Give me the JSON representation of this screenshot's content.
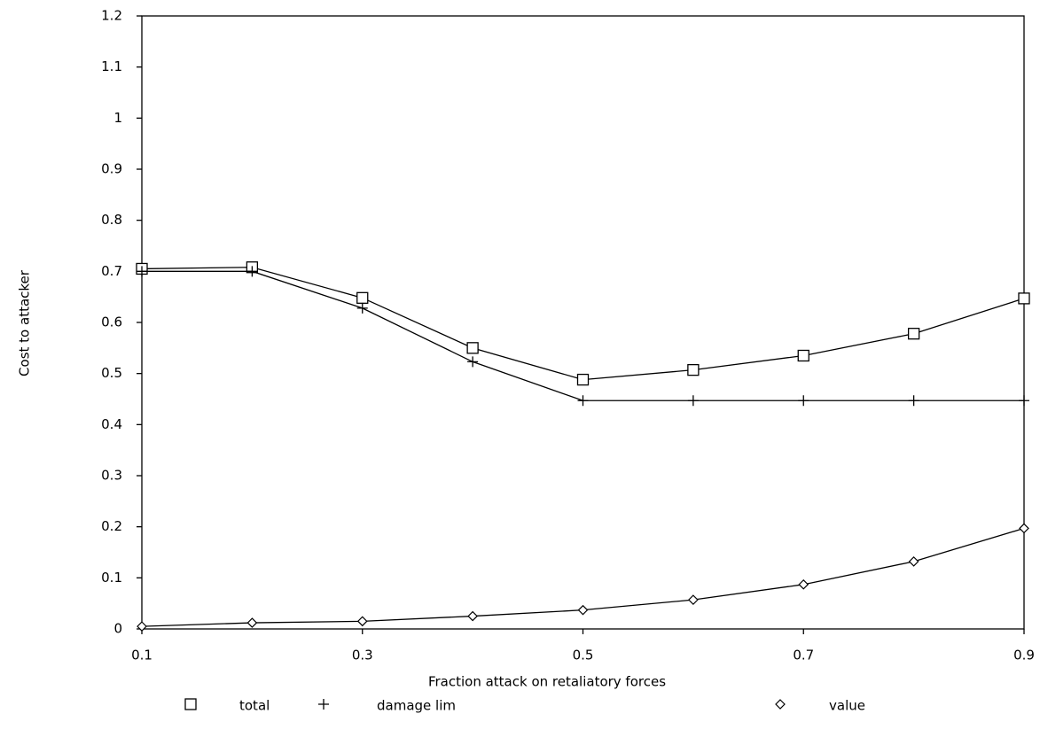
{
  "chart_data": {
    "type": "line",
    "x_label": "Fraction attack on retaliatory forces",
    "y_label": "Cost to attacker",
    "x": [
      0.1,
      0.2,
      0.3,
      0.4,
      0.5,
      0.6,
      0.7,
      0.8,
      0.9
    ],
    "series": [
      {
        "name": "total",
        "color": "#000000",
        "marker": "square",
        "values": [
          0.705,
          0.708,
          0.648,
          0.55,
          0.488,
          0.507,
          0.535,
          0.578,
          0.647
        ]
      },
      {
        "name": "damage lim",
        "color": "#000000",
        "marker": "plus",
        "values": [
          0.7,
          0.7,
          0.628,
          0.523,
          0.447,
          0.447,
          0.447,
          0.447,
          0.447
        ]
      },
      {
        "name": "value",
        "color": "#000000",
        "marker": "diamond",
        "values": [
          0.005,
          0.012,
          0.015,
          0.025,
          0.037,
          0.057,
          0.087,
          0.132,
          0.197
        ]
      }
    ],
    "xlim": [
      0.1,
      0.9
    ],
    "xticks": [
      0.1,
      0.3,
      0.5,
      0.7,
      0.9
    ],
    "ylim": [
      0,
      1.2
    ],
    "yticks": [
      0,
      0.1,
      0.2,
      0.3,
      0.4,
      0.5,
      0.6,
      0.7,
      0.8,
      0.9,
      1,
      1.1,
      1.2
    ],
    "legend": "bottom"
  }
}
